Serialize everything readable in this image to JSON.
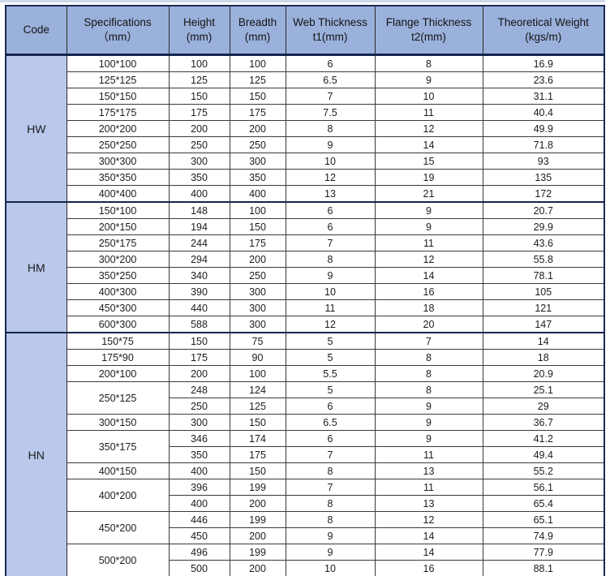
{
  "table": {
    "header": {
      "columns": [
        "Code",
        "Specifications\n（mm）",
        "Height\n(mm)",
        "Breadth\n(mm)",
        "Web Thickness\nt1(mm)",
        "Flange Thickness\nt2(mm)",
        "Theoretical Weight\n(kgs/m)"
      ]
    },
    "groups": [
      {
        "code": "HW",
        "specs": [
          {
            "spec": "100*100",
            "rows": [
              [
                "100",
                "100",
                "6",
                "8",
                "16.9"
              ]
            ]
          },
          {
            "spec": "125*125",
            "rows": [
              [
                "125",
                "125",
                "6.5",
                "9",
                "23.6"
              ]
            ]
          },
          {
            "spec": "150*150",
            "rows": [
              [
                "150",
                "150",
                "7",
                "10",
                "31.1"
              ]
            ]
          },
          {
            "spec": "175*175",
            "rows": [
              [
                "175",
                "175",
                "7.5",
                "11",
                "40.4"
              ]
            ]
          },
          {
            "spec": "200*200",
            "rows": [
              [
                "200",
                "200",
                "8",
                "12",
                "49.9"
              ]
            ]
          },
          {
            "spec": "250*250",
            "rows": [
              [
                "250",
                "250",
                "9",
                "14",
                "71.8"
              ]
            ]
          },
          {
            "spec": "300*300",
            "rows": [
              [
                "300",
                "300",
                "10",
                "15",
                "93"
              ]
            ]
          },
          {
            "spec": "350*350",
            "rows": [
              [
                "350",
                "350",
                "12",
                "19",
                "135"
              ]
            ]
          },
          {
            "spec": "400*400",
            "rows": [
              [
                "400",
                "400",
                "13",
                "21",
                "172"
              ]
            ]
          }
        ]
      },
      {
        "code": "HM",
        "specs": [
          {
            "spec": "150*100",
            "rows": [
              [
                "148",
                "100",
                "6",
                "9",
                "20.7"
              ]
            ]
          },
          {
            "spec": "200*150",
            "rows": [
              [
                "194",
                "150",
                "6",
                "9",
                "29.9"
              ]
            ]
          },
          {
            "spec": "250*175",
            "rows": [
              [
                "244",
                "175",
                "7",
                "11",
                "43.6"
              ]
            ]
          },
          {
            "spec": "300*200",
            "rows": [
              [
                "294",
                "200",
                "8",
                "12",
                "55.8"
              ]
            ]
          },
          {
            "spec": "350*250",
            "rows": [
              [
                "340",
                "250",
                "9",
                "14",
                "78.1"
              ]
            ]
          },
          {
            "spec": "400*300",
            "rows": [
              [
                "390",
                "300",
                "10",
                "16",
                "105"
              ]
            ]
          },
          {
            "spec": "450*300",
            "rows": [
              [
                "440",
                "300",
                "11",
                "18",
                "121"
              ]
            ]
          },
          {
            "spec": "600*300",
            "rows": [
              [
                "588",
                "300",
                "12",
                "20",
                "147"
              ]
            ]
          }
        ]
      },
      {
        "code": "HN",
        "specs": [
          {
            "spec": "150*75",
            "rows": [
              [
                "150",
                "75",
                "5",
                "7",
                "14"
              ]
            ]
          },
          {
            "spec": "175*90",
            "rows": [
              [
                "175",
                "90",
                "5",
                "8",
                "18"
              ]
            ]
          },
          {
            "spec": "200*100",
            "rows": [
              [
                "200",
                "100",
                "5.5",
                "8",
                "20.9"
              ]
            ]
          },
          {
            "spec": "250*125",
            "rows": [
              [
                "248",
                "124",
                "5",
                "8",
                "25.1"
              ],
              [
                "250",
                "125",
                "6",
                "9",
                "29"
              ]
            ]
          },
          {
            "spec": "300*150",
            "rows": [
              [
                "300",
                "150",
                "6.5",
                "9",
                "36.7"
              ]
            ]
          },
          {
            "spec": "350*175",
            "rows": [
              [
                "346",
                "174",
                "6",
                "9",
                "41.2"
              ],
              [
                "350",
                "175",
                "7",
                "11",
                "49.4"
              ]
            ]
          },
          {
            "spec": "400*150",
            "rows": [
              [
                "400",
                "150",
                "8",
                "13",
                "55.2"
              ]
            ]
          },
          {
            "spec": "400*200",
            "rows": [
              [
                "396",
                "199",
                "7",
                "11",
                "56.1"
              ],
              [
                "400",
                "200",
                "8",
                "13",
                "65.4"
              ]
            ]
          },
          {
            "spec": "450*200",
            "rows": [
              [
                "446",
                "199",
                "8",
                "12",
                "65.1"
              ],
              [
                "450",
                "200",
                "9",
                "14",
                "74.9"
              ]
            ]
          },
          {
            "spec": "500*200",
            "rows": [
              [
                "496",
                "199",
                "9",
                "14",
                "77.9"
              ],
              [
                "500",
                "200",
                "10",
                "16",
                "88.1"
              ]
            ]
          }
        ]
      }
    ]
  },
  "colors": {
    "header_bg": "#9ab1dc",
    "code_cell_bg": "#b9c8eb",
    "outer_border": "#1b2a52",
    "inner_grid": "#3a3a3a",
    "text": "#1c1c1c"
  }
}
